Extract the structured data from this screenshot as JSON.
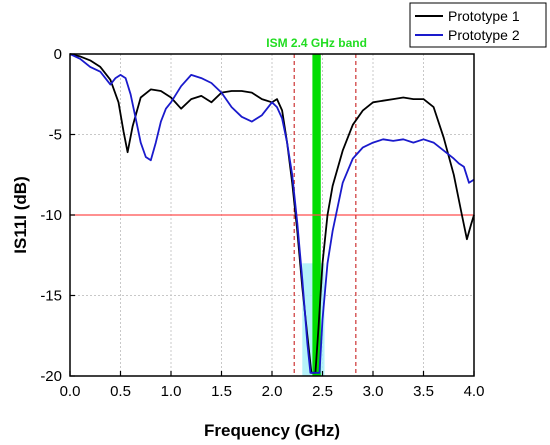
{
  "chart_data": {
    "type": "line",
    "title": "",
    "xlabel": "Frequency (GHz)",
    "ylabel": "IS11I (dB)",
    "xlim": [
      0.0,
      4.0
    ],
    "ylim": [
      -20,
      0
    ],
    "x_ticks": [
      "0.0",
      "0.5",
      "1.0",
      "1.5",
      "2.0",
      "2.5",
      "3.0",
      "3.5",
      "4.0"
    ],
    "y_ticks": [
      "0",
      "-5",
      "-10",
      "-15",
      "-20"
    ],
    "grid": true,
    "legend_position": "top-right",
    "series": [
      {
        "name": "Prototype 1",
        "color": "#000000",
        "points": [
          [
            0.0,
            0.0
          ],
          [
            0.1,
            -0.15
          ],
          [
            0.2,
            -0.4
          ],
          [
            0.3,
            -0.8
          ],
          [
            0.4,
            -1.6
          ],
          [
            0.48,
            -3.0
          ],
          [
            0.53,
            -4.8
          ],
          [
            0.57,
            -6.1
          ],
          [
            0.62,
            -4.5
          ],
          [
            0.7,
            -2.7
          ],
          [
            0.8,
            -2.2
          ],
          [
            0.9,
            -2.3
          ],
          [
            1.0,
            -2.7
          ],
          [
            1.1,
            -3.4
          ],
          [
            1.2,
            -2.8
          ],
          [
            1.3,
            -2.6
          ],
          [
            1.4,
            -3.0
          ],
          [
            1.5,
            -2.4
          ],
          [
            1.6,
            -2.3
          ],
          [
            1.7,
            -2.3
          ],
          [
            1.8,
            -2.4
          ],
          [
            1.9,
            -2.8
          ],
          [
            2.0,
            -3.0
          ],
          [
            2.05,
            -2.8
          ],
          [
            2.1,
            -3.5
          ],
          [
            2.15,
            -5.5
          ],
          [
            2.2,
            -8.0
          ],
          [
            2.25,
            -11.0
          ],
          [
            2.3,
            -14.5
          ],
          [
            2.35,
            -17.5
          ],
          [
            2.39,
            -19.8
          ],
          [
            2.43,
            -19.8
          ],
          [
            2.46,
            -17.0
          ],
          [
            2.5,
            -13.0
          ],
          [
            2.55,
            -10.0
          ],
          [
            2.6,
            -8.2
          ],
          [
            2.7,
            -6.0
          ],
          [
            2.8,
            -4.4
          ],
          [
            2.9,
            -3.5
          ],
          [
            3.0,
            -3.0
          ],
          [
            3.1,
            -2.9
          ],
          [
            3.2,
            -2.8
          ],
          [
            3.3,
            -2.7
          ],
          [
            3.4,
            -2.8
          ],
          [
            3.5,
            -2.8
          ],
          [
            3.6,
            -3.3
          ],
          [
            3.7,
            -5.2
          ],
          [
            3.8,
            -7.5
          ],
          [
            3.88,
            -10.0
          ],
          [
            3.93,
            -11.5
          ],
          [
            3.97,
            -10.6
          ],
          [
            4.0,
            -10.0
          ]
        ]
      },
      {
        "name": "Prototype 2",
        "color": "#1a1acc",
        "points": [
          [
            0.0,
            0.0
          ],
          [
            0.1,
            -0.3
          ],
          [
            0.2,
            -0.8
          ],
          [
            0.3,
            -1.1
          ],
          [
            0.4,
            -1.9
          ],
          [
            0.45,
            -1.5
          ],
          [
            0.5,
            -1.3
          ],
          [
            0.55,
            -1.5
          ],
          [
            0.6,
            -2.5
          ],
          [
            0.65,
            -4.0
          ],
          [
            0.7,
            -5.5
          ],
          [
            0.75,
            -6.4
          ],
          [
            0.8,
            -6.6
          ],
          [
            0.85,
            -5.5
          ],
          [
            0.9,
            -4.2
          ],
          [
            0.95,
            -3.4
          ],
          [
            1.0,
            -3.0
          ],
          [
            1.1,
            -2.0
          ],
          [
            1.2,
            -1.3
          ],
          [
            1.3,
            -1.5
          ],
          [
            1.4,
            -1.8
          ],
          [
            1.5,
            -2.4
          ],
          [
            1.6,
            -3.3
          ],
          [
            1.7,
            -3.9
          ],
          [
            1.8,
            -4.2
          ],
          [
            1.9,
            -3.8
          ],
          [
            2.0,
            -3.0
          ],
          [
            2.05,
            -3.3
          ],
          [
            2.1,
            -4.0
          ],
          [
            2.15,
            -5.5
          ],
          [
            2.2,
            -7.5
          ],
          [
            2.25,
            -10.5
          ],
          [
            2.3,
            -14.0
          ],
          [
            2.35,
            -18.0
          ],
          [
            2.38,
            -19.8
          ],
          [
            2.47,
            -19.8
          ],
          [
            2.5,
            -16.5
          ],
          [
            2.55,
            -13.0
          ],
          [
            2.6,
            -11.0
          ],
          [
            2.7,
            -8.0
          ],
          [
            2.8,
            -6.5
          ],
          [
            2.9,
            -5.8
          ],
          [
            3.0,
            -5.5
          ],
          [
            3.1,
            -5.3
          ],
          [
            3.2,
            -5.4
          ],
          [
            3.3,
            -5.3
          ],
          [
            3.4,
            -5.5
          ],
          [
            3.5,
            -5.3
          ],
          [
            3.6,
            -5.5
          ],
          [
            3.7,
            -6.0
          ],
          [
            3.8,
            -6.5
          ],
          [
            3.85,
            -6.8
          ],
          [
            3.9,
            -7.0
          ],
          [
            3.95,
            -8.0
          ],
          [
            4.0,
            -7.8
          ]
        ]
      }
    ],
    "reference_lines": {
      "horizontal": {
        "y": -10,
        "color": "#ff4d4d"
      },
      "vertical_dashed": [
        {
          "x": 2.22,
          "color": "#cc3333"
        },
        {
          "x": 2.83,
          "color": "#cc3333"
        }
      ]
    },
    "band": {
      "label": "ISM 2.4 GHz band",
      "x_range": [
        2.4,
        2.483
      ],
      "color": "#00dd00"
    },
    "highlight": {
      "x_range": [
        2.3,
        2.52
      ],
      "y_range": [
        -20,
        -13
      ],
      "color": "#a8f0f8"
    }
  }
}
